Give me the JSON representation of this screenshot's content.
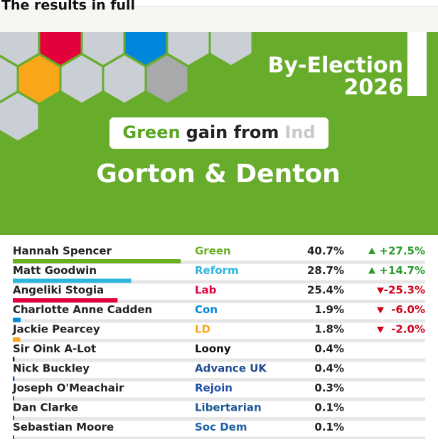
{
  "header": {
    "title": "The results in full"
  },
  "banner": {
    "title": "By-Election",
    "year": "2026",
    "result": {
      "winner": "Green",
      "phrase": "gain from",
      "loser": "Ind"
    },
    "constituency": "Gorton & Denton"
  },
  "table": {
    "rows": [
      {
        "name": "Hannah Spencer",
        "party": "Green",
        "color": "#6ab023",
        "share": 40.7,
        "share_label": "40.7%",
        "change": 27.5,
        "change_label": "+27.5%"
      },
      {
        "name": "Matt Goodwin",
        "party": "Reform",
        "color": "#2eb5dc",
        "share": 28.7,
        "share_label": "28.7%",
        "change": 14.7,
        "change_label": "+14.7%"
      },
      {
        "name": "Angeliki Stogia",
        "party": "Lab",
        "color": "#e4003b",
        "share": 25.4,
        "share_label": "25.4%",
        "change": -25.3,
        "change_label": "-25.3%"
      },
      {
        "name": "Charlotte Anne Cadden",
        "party": "Con",
        "color": "#0087dc",
        "share": 1.9,
        "share_label": "1.9%",
        "change": -6.0,
        "change_label": "-6.0%"
      },
      {
        "name": "Jackie Pearcey",
        "party": "LD",
        "color": "#faa61a",
        "share": 1.8,
        "share_label": "1.8%",
        "change": -2.0,
        "change_label": "-2.0%"
      },
      {
        "name": "Sir Oink A-Lot",
        "party": "Loony",
        "color": "#111111",
        "share": 0.4,
        "share_label": "0.4%"
      },
      {
        "name": "Nick Buckley",
        "party": "Advance UK",
        "color": "#1f4a8c",
        "share": 0.4,
        "share_label": "0.4%"
      },
      {
        "name": "Joseph O'Meachair",
        "party": "Rejoin",
        "color": "#1f4fa8",
        "share": 0.3,
        "share_label": "0.3%"
      },
      {
        "name": "Dan Clarke",
        "party": "Libertarian",
        "color": "#1d5a96",
        "share": 0.1,
        "share_label": "0.1%"
      },
      {
        "name": "Sebastian Moore",
        "party": "Soc Dem",
        "color": "#1f5fa6",
        "share": 0.1,
        "share_label": "0.1%"
      }
    ]
  }
}
